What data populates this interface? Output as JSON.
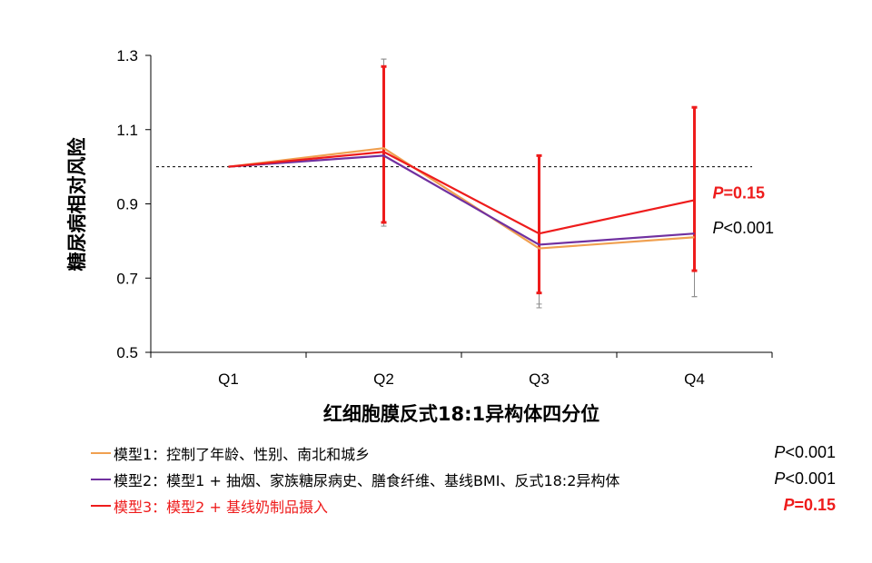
{
  "chart_data": {
    "type": "line",
    "xlabel": "红细胞膜反式18:1异构体四分位",
    "ylabel": "糖尿病相对风险",
    "categories": [
      "Q1",
      "Q2",
      "Q3",
      "Q4"
    ],
    "ylim": [
      0.5,
      1.3
    ],
    "yticks": [
      "0.5",
      "0.7",
      "0.9",
      "1.1",
      "1.3"
    ],
    "reference_line": 1.0,
    "series": [
      {
        "name": "模型1：控制了年龄、性别、南北和城乡",
        "color": "#f0a050",
        "values": [
          1.0,
          1.05,
          0.78,
          0.81
        ],
        "ci_lower": [
          1.0,
          0.84,
          0.62,
          0.65
        ],
        "ci_upper": [
          1.0,
          1.29,
          1.03,
          1.16
        ],
        "p_prefix": "P",
        "p_value": "<0.001"
      },
      {
        "name": "模型2：模型1 + 抽烟、家族糖尿病史、膳食纤维、基线BMI、反式18:2异构体",
        "color": "#7030a0",
        "values": [
          1.0,
          1.03,
          0.79,
          0.82
        ],
        "ci_lower": [
          1.0,
          0.84,
          0.63,
          0.65
        ],
        "ci_upper": [
          1.0,
          1.29,
          1.03,
          1.16
        ],
        "p_prefix": "P",
        "p_value": "<0.001"
      },
      {
        "name": "模型3：模型2 + 基线奶制品摄入",
        "color": "#ee1c1c",
        "values": [
          1.0,
          1.04,
          0.82,
          0.91
        ],
        "ci_lower": [
          1.0,
          0.85,
          0.66,
          0.72
        ],
        "ci_upper": [
          1.0,
          1.27,
          1.03,
          1.16
        ],
        "p_prefix": "P",
        "p_value": "=0.15"
      }
    ],
    "annotations": [
      {
        "p_prefix": "P",
        "text": "=0.15",
        "color": "#ee1c1c",
        "bold": true,
        "series_index": 2
      },
      {
        "p_prefix": "P",
        "text": "<0.001",
        "color": "#000000",
        "bold": false,
        "series_index": 1
      }
    ],
    "legend_placement": "bottom"
  }
}
